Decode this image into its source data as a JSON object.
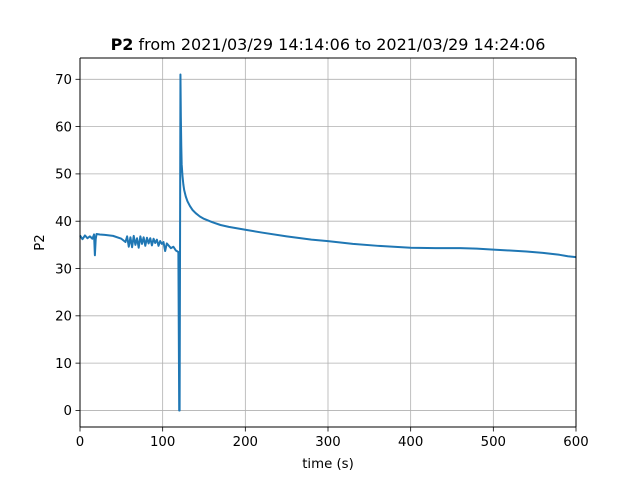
{
  "chart_data": {
    "type": "line",
    "title_bold": "P2",
    "title_rest": " from 2021/03/29 14:14:06 to 2021/03/29 14:24:06",
    "xlabel": "time (s)",
    "ylabel": "P2",
    "xlim": [
      0,
      600
    ],
    "ylim": [
      -3.5,
      74.5
    ],
    "xticks": [
      0,
      100,
      200,
      300,
      400,
      500,
      600
    ],
    "yticks": [
      0,
      10,
      20,
      30,
      40,
      50,
      60,
      70
    ],
    "grid": true,
    "line_color": "#1f77b4",
    "series": [
      {
        "x": [
          0,
          3,
          6,
          9,
          12,
          15,
          17,
          18,
          19,
          20,
          24,
          30,
          40,
          50,
          55,
          57,
          59,
          61,
          63,
          65,
          67,
          69,
          71,
          73,
          75,
          77,
          79,
          81,
          83,
          85,
          87,
          89,
          91,
          93,
          95,
          97,
          99,
          101,
          103,
          105,
          107,
          110,
          113,
          116,
          119,
          120,
          120.5,
          121,
          121.5,
          122,
          122.5,
          123,
          124,
          125,
          126,
          128,
          130,
          133,
          136,
          140,
          145,
          150,
          160,
          170,
          180,
          200,
          220,
          250,
          280,
          300,
          330,
          360,
          400,
          430,
          460,
          480,
          500,
          520,
          540,
          560,
          580,
          590,
          600
        ],
        "y": [
          37,
          36.2,
          37,
          36.4,
          36.8,
          36.3,
          37.2,
          32.8,
          36.2,
          37.3,
          37.2,
          37.1,
          36.9,
          36.3,
          35.6,
          36.8,
          34.6,
          36.6,
          34.5,
          36.9,
          35,
          36.4,
          34.4,
          36.8,
          35.2,
          36.6,
          34.8,
          36.5,
          35.3,
          36.4,
          34.9,
          36.3,
          35.4,
          36.1,
          34.8,
          35.8,
          35.2,
          35.6,
          33.7,
          35.3,
          34.9,
          34.3,
          34.6,
          33.8,
          33.5,
          0,
          0,
          34,
          71,
          62,
          56,
          52,
          49.5,
          47.8,
          46.6,
          45.2,
          44.2,
          43.2,
          42.4,
          41.7,
          41,
          40.5,
          39.8,
          39.2,
          38.8,
          38.2,
          37.6,
          36.8,
          36.1,
          35.8,
          35.2,
          34.8,
          34.4,
          34.3,
          34.3,
          34.2,
          34,
          33.8,
          33.6,
          33.3,
          32.9,
          32.6,
          32.4
        ]
      }
    ]
  }
}
